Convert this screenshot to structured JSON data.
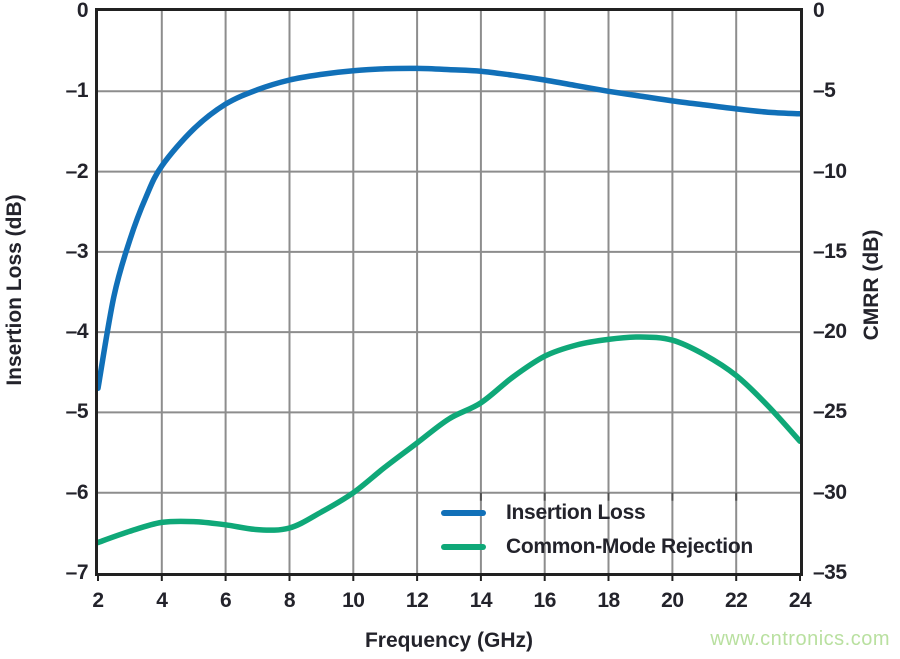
{
  "watermark": {
    "text": "www.cntronics.com",
    "color": "#b9e0a0"
  },
  "colors": {
    "grid": "#8d8d8d",
    "spine": "#212121",
    "text": "#23232b",
    "insertion_loss_blue": "#1170b8",
    "cmrr_green": "#0fa878"
  },
  "chart_data": {
    "type": "line",
    "title": "",
    "xlabel": "Frequency (GHz)",
    "ylabel_left": "Insertion Loss (dB)",
    "ylabel_right": "CMRR (dB)",
    "x_range": [
      2,
      24
    ],
    "y_left_range": [
      -7,
      0
    ],
    "y_right_range": [
      -35,
      0
    ],
    "grid": true,
    "legend_position": "inside-bottom-right",
    "x_ticks": [
      2,
      4,
      6,
      8,
      10,
      12,
      14,
      16,
      18,
      20,
      22,
      24
    ],
    "x_tick_labels": [
      "2",
      "4",
      "6",
      "8",
      "10",
      "12",
      "14",
      "16",
      "18",
      "20",
      "22",
      "24"
    ],
    "y_left_ticks": [
      0,
      -1,
      -2,
      -3,
      -4,
      -5,
      -6,
      -7
    ],
    "y_left_tick_labels": [
      "0",
      "–1",
      "–2",
      "–3",
      "–4",
      "–5",
      "–6",
      "–7"
    ],
    "y_right_ticks": [
      0,
      -5,
      -10,
      -15,
      -20,
      -25,
      -30,
      -35
    ],
    "y_right_tick_labels": [
      "0",
      "–5",
      "–10",
      "–15",
      "–20",
      "–25",
      "–30",
      "–35"
    ],
    "series": [
      {
        "name": "Insertion Loss",
        "axis": "left",
        "color": "#1170b8",
        "x": [
          2,
          2.5,
          3,
          3.5,
          4,
          5,
          6,
          7,
          8,
          9,
          10,
          11,
          12,
          13,
          14,
          15,
          16,
          17,
          18,
          19,
          20,
          21,
          22,
          23,
          24
        ],
        "y": [
          -4.7,
          -3.55,
          -2.85,
          -2.32,
          -1.93,
          -1.47,
          -1.16,
          -0.98,
          -0.86,
          -0.79,
          -0.745,
          -0.72,
          -0.715,
          -0.73,
          -0.75,
          -0.8,
          -0.86,
          -0.93,
          -1.0,
          -1.06,
          -1.12,
          -1.17,
          -1.22,
          -1.26,
          -1.28
        ]
      },
      {
        "name": "Common-Mode Rejection",
        "axis": "right",
        "color": "#0fa878",
        "x": [
          2,
          3,
          4,
          5,
          6,
          7,
          8,
          9,
          10,
          11,
          12,
          13,
          14,
          15,
          16,
          17,
          18,
          19,
          20,
          21,
          22,
          23,
          24
        ],
        "y": [
          -33.1,
          -32.4,
          -31.85,
          -31.8,
          -32.0,
          -32.3,
          -32.2,
          -31.2,
          -30.0,
          -28.4,
          -26.9,
          -25.4,
          -24.4,
          -22.8,
          -21.5,
          -20.8,
          -20.45,
          -20.3,
          -20.5,
          -21.4,
          -22.7,
          -24.6,
          -26.8
        ]
      }
    ]
  }
}
